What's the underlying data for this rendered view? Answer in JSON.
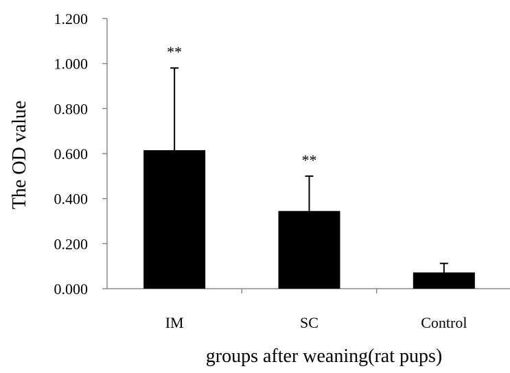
{
  "chart_data": {
    "type": "bar",
    "categories": [
      "IM",
      "SC",
      "Control"
    ],
    "values": [
      0.615,
      0.345,
      0.072
    ],
    "error_plus": [
      0.365,
      0.155,
      0.04
    ],
    "annotations": [
      "**",
      "**",
      ""
    ],
    "xlabel": "groups after weaning(rat pups)",
    "ylabel": "The OD value",
    "ylim": [
      0,
      1.2
    ],
    "yticks": [
      "0.000",
      "0.200",
      "0.400",
      "0.600",
      "0.800",
      "1.000",
      "1.200"
    ],
    "grid": false,
    "bar_color": "#000000"
  }
}
